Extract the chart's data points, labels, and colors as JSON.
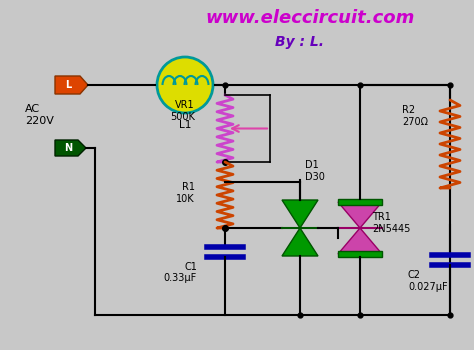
{
  "bg_color": "#c8c8c8",
  "title_text": "www.eleccircuit.com",
  "title_color": "#cc00cc",
  "subtitle_text": "By : L.",
  "subtitle_color": "#6600bb",
  "wire_color": "#000000",
  "component_colors": {
    "L_plug": "#dd4400",
    "N_plug": "#005500",
    "bulb_body": "#dddd00",
    "bulb_outline": "#009999",
    "vr1_zigzag": "#cc44cc",
    "r1_zigzag": "#cc4400",
    "r2_zigzag": "#cc4400",
    "d1_top": "#009900",
    "d1_bot": "#009900",
    "triac_tri": "#cc44aa",
    "triac_bar": "#009900",
    "c1_plates": "#0000aa",
    "c2_plates": "#0000aa",
    "arrow_color": "#dd44aa"
  },
  "labels": {
    "ac": "AC\n220V",
    "L": "L",
    "N": "N",
    "L1": "L1",
    "VR1": "VR1\n500K",
    "R1": "R1\n10K",
    "R2": "R2\n270Ω",
    "D1": "D1\nD30",
    "TR1": "TR1\n2N5445",
    "C1": "C1\n0.33μF",
    "C2": "C2\n0.027μF"
  }
}
